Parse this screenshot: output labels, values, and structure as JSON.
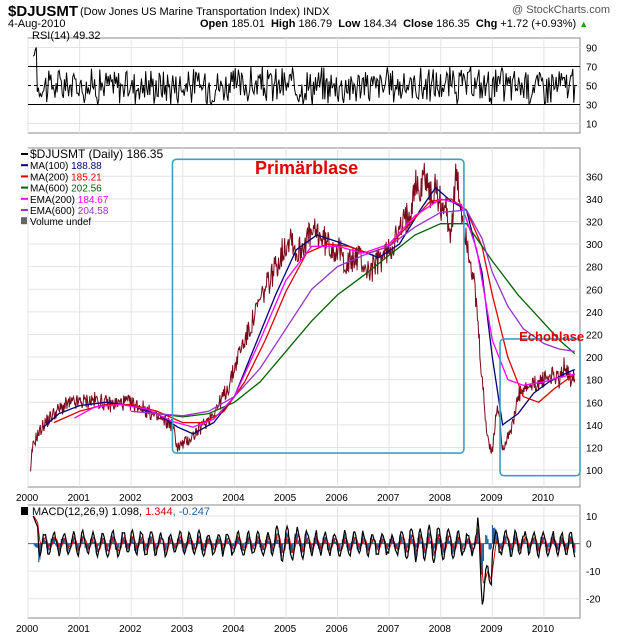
{
  "header": {
    "symbol": "$DJUSMT",
    "name": "(Dow Jones US Marine Transportation Index)",
    "exchange": "INDX",
    "date": "4-Aug-2010",
    "open_label": "Open",
    "open": "185.01",
    "high_label": "High",
    "high": "186.79",
    "low_label": "Low",
    "low": "184.34",
    "close_label": "Close",
    "close": "186.35",
    "chg_label": "Chg",
    "chg": "+1.72 (+0.93%)",
    "source": "@ StockCharts.com"
  },
  "colors": {
    "price": "#7a0a1a",
    "ma100": "#000080",
    "ma200": "#e00000",
    "ma600": "#006400",
    "ema200": "#ff00ff",
    "ema600": "#9932cc",
    "box": "#3aa0c8",
    "annotation": "#e00000",
    "macd": "#000000",
    "macd_signal": "#e00000",
    "macd_hist": "#1f5fa0"
  },
  "chart_data": [
    {
      "type": "line",
      "panel": "rsi",
      "legend": "RSI(14) 49.32",
      "ylim": [
        0,
        100
      ],
      "yticks": [
        10,
        30,
        50,
        70,
        90
      ],
      "reference_lines": [
        30,
        70
      ],
      "last_value": 49.32
    },
    {
      "type": "line",
      "panel": "price",
      "legend": [
        {
          "name": "$DJUSMT (Daily)",
          "value": "186.35",
          "key": "price"
        },
        {
          "name": "MA(100)",
          "value": "188.88",
          "key": "ma100"
        },
        {
          "name": "MA(200)",
          "value": "185.21",
          "key": "ma200"
        },
        {
          "name": "MA(600)",
          "value": "202.56",
          "key": "ma600"
        },
        {
          "name": "EMA(200)",
          "value": "184.67",
          "key": "ema200"
        },
        {
          "name": "EMA(600)",
          "value": "204.58",
          "key": "ema600"
        },
        {
          "name": "Volume undef",
          "value": "",
          "key": "volume"
        }
      ],
      "ylim": [
        85,
        385
      ],
      "yticks": [
        100,
        120,
        140,
        160,
        180,
        200,
        220,
        240,
        260,
        280,
        300,
        320,
        340,
        360
      ],
      "xlim": [
        2000,
        2010.7
      ],
      "xticks": [
        "2000",
        "2001",
        "2002",
        "2003",
        "2004",
        "2005",
        "2006",
        "2007",
        "2008",
        "2009",
        "2010"
      ],
      "series": [
        {
          "key": "price",
          "x": [
            2000.05,
            2000.08,
            2000.15,
            2000.3,
            2000.5,
            2000.75,
            2001.0,
            2001.3,
            2001.6,
            2001.9,
            2002.2,
            2002.5,
            2002.8,
            2002.9,
            2003.1,
            2003.3,
            2003.5,
            2003.7,
            2003.9,
            2004.1,
            2004.3,
            2004.5,
            2004.7,
            2004.9,
            2005.0,
            2005.1,
            2005.2,
            2005.4,
            2005.6,
            2005.8,
            2006.0,
            2006.2,
            2006.4,
            2006.6,
            2006.8,
            2007.0,
            2007.2,
            2007.4,
            2007.5,
            2007.6,
            2007.7,
            2007.8,
            2007.9,
            2008.0,
            2008.1,
            2008.2,
            2008.3,
            2008.4,
            2008.5,
            2008.6,
            2008.7,
            2008.8,
            2008.9,
            2009.0,
            2009.1,
            2009.2,
            2009.3,
            2009.4,
            2009.5,
            2009.6,
            2009.8,
            2010.0,
            2010.2,
            2010.3,
            2010.4,
            2010.5,
            2010.6
          ],
          "y": [
            96,
            118,
            128,
            140,
            150,
            158,
            160,
            162,
            158,
            160,
            156,
            146,
            140,
            120,
            126,
            135,
            145,
            158,
            175,
            205,
            225,
            250,
            270,
            290,
            300,
            310,
            290,
            305,
            310,
            300,
            295,
            282,
            290,
            275,
            285,
            295,
            310,
            330,
            355,
            345,
            365,
            340,
            350,
            335,
            330,
            310,
            360,
            330,
            305,
            280,
            240,
            180,
            130,
            115,
            160,
            120,
            130,
            140,
            165,
            170,
            175,
            180,
            185,
            178,
            195,
            180,
            186
          ]
        },
        {
          "key": "ma100",
          "x": [
            2000.3,
            2000.6,
            2001.0,
            2001.5,
            2002.0,
            2002.5,
            2002.9,
            2003.2,
            2003.6,
            2004.0,
            2004.4,
            2004.8,
            2005.2,
            2005.6,
            2006.0,
            2006.4,
            2006.8,
            2007.2,
            2007.6,
            2007.9,
            2008.2,
            2008.5,
            2008.8,
            2009.0,
            2009.2,
            2009.5,
            2009.8,
            2010.1,
            2010.4,
            2010.6
          ],
          "y": [
            138,
            150,
            157,
            160,
            157,
            150,
            138,
            132,
            142,
            165,
            210,
            255,
            295,
            308,
            302,
            295,
            288,
            300,
            330,
            350,
            338,
            330,
            275,
            200,
            140,
            150,
            168,
            178,
            185,
            189
          ]
        },
        {
          "key": "ma200",
          "x": [
            2000.5,
            2001.0,
            2001.5,
            2002.0,
            2002.5,
            2003.0,
            2003.4,
            2003.8,
            2004.2,
            2004.6,
            2005.0,
            2005.4,
            2005.8,
            2006.2,
            2006.6,
            2007.0,
            2007.4,
            2007.8,
            2008.2,
            2008.5,
            2008.8,
            2009.0,
            2009.3,
            2009.6,
            2009.9,
            2010.2,
            2010.6
          ],
          "y": [
            142,
            152,
            158,
            158,
            152,
            142,
            142,
            152,
            178,
            215,
            258,
            292,
            300,
            298,
            292,
            298,
            318,
            338,
            340,
            330,
            298,
            255,
            200,
            165,
            160,
            172,
            185
          ]
        },
        {
          "key": "ma600",
          "x": [
            2002.5,
            2003.0,
            2003.5,
            2004.0,
            2004.5,
            2005.0,
            2005.5,
            2006.0,
            2006.5,
            2007.0,
            2007.5,
            2008.0,
            2008.5,
            2009.0,
            2009.5,
            2010.0,
            2010.3,
            2010.6
          ],
          "y": [
            150,
            147,
            150,
            160,
            178,
            205,
            232,
            255,
            272,
            290,
            308,
            318,
            318,
            285,
            255,
            230,
            215,
            203
          ]
        },
        {
          "key": "ema200",
          "x": [
            2000.9,
            2001.3,
            2001.8,
            2002.3,
            2002.8,
            2003.2,
            2003.6,
            2004.0,
            2004.5,
            2005.0,
            2005.5,
            2006.0,
            2006.5,
            2007.0,
            2007.5,
            2008.0,
            2008.4,
            2008.7,
            2009.0,
            2009.3,
            2009.6,
            2010.0,
            2010.3,
            2010.6
          ],
          "y": [
            146,
            156,
            158,
            154,
            143,
            138,
            145,
            165,
            215,
            268,
            298,
            298,
            292,
            300,
            325,
            340,
            335,
            295,
            215,
            180,
            175,
            178,
            182,
            185
          ]
        },
        {
          "key": "ema600",
          "x": [
            2002.0,
            2002.5,
            2003.0,
            2003.5,
            2004.0,
            2004.5,
            2005.0,
            2005.5,
            2006.0,
            2006.5,
            2007.0,
            2007.5,
            2008.0,
            2008.5,
            2008.8,
            2009.0,
            2009.3,
            2009.6,
            2010.0,
            2010.3,
            2010.6
          ],
          "y": [
            152,
            150,
            148,
            152,
            165,
            190,
            225,
            260,
            280,
            290,
            298,
            315,
            328,
            330,
            305,
            275,
            245,
            225,
            212,
            207,
            205
          ]
        }
      ],
      "annotations": [
        {
          "label": "Primärblase",
          "x": 2005.4,
          "y": 362
        },
        {
          "label": "Echoblase",
          "x": 2010.15,
          "y": 214
        }
      ],
      "boxes": [
        {
          "x0": 2002.8,
          "x1": 2008.45,
          "y0": 115,
          "y1": 375
        },
        {
          "x0": 2009.15,
          "x1": 2010.7,
          "y0": 95,
          "y1": 216
        }
      ]
    },
    {
      "type": "line",
      "panel": "macd",
      "legend_prefix": "MACD(12,26,9)",
      "macd_value": "1.098",
      "signal_value": "1.344",
      "hist_value": "-0.247",
      "ylim": [
        -27,
        14
      ],
      "yticks": [
        10,
        0,
        -10,
        -20
      ],
      "xticks": [
        "2000",
        "2001",
        "2002",
        "2003",
        "2004",
        "2005",
        "2006",
        "2007",
        "2008",
        "2009",
        "2010"
      ]
    }
  ]
}
